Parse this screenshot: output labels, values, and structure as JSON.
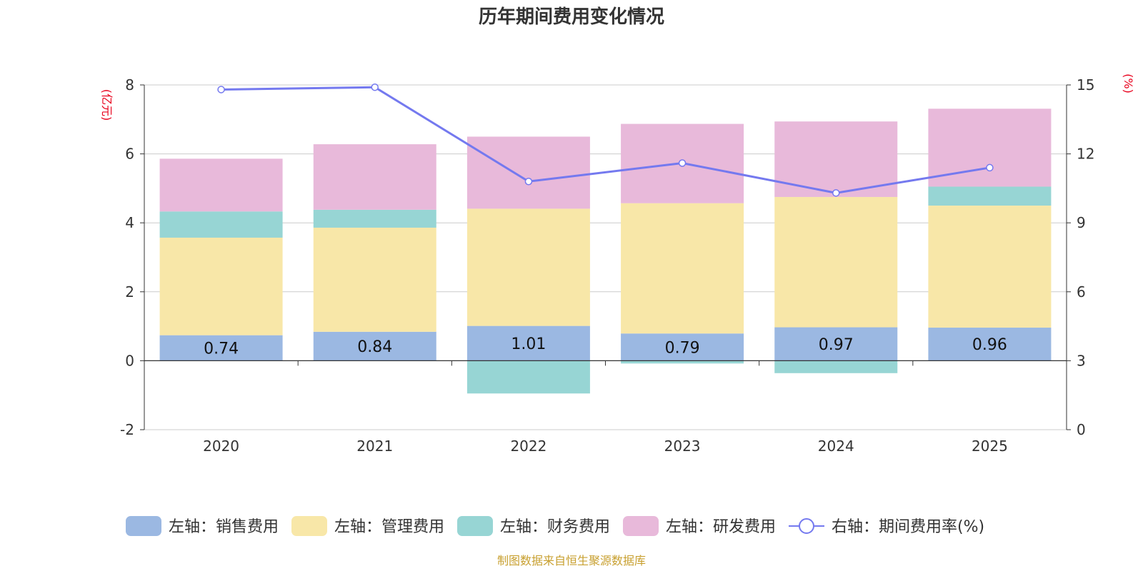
{
  "chart_data": {
    "type": "bar",
    "title": "历年期间费用变化情况",
    "left_unit": "(亿元)",
    "right_unit": "(%)",
    "categories": [
      "2020",
      "2021",
      "2022",
      "2023",
      "2024",
      "2025"
    ],
    "series": [
      {
        "name": "左轴：销售费用",
        "type": "bar",
        "axis": "left",
        "color": "#9bb8e2",
        "values": [
          0.74,
          0.84,
          1.01,
          0.79,
          0.97,
          0.96
        ],
        "labels": [
          "0.74",
          "0.84",
          "1.01",
          "0.79",
          "0.97",
          "0.96"
        ]
      },
      {
        "name": "左轴：管理费用",
        "type": "bar",
        "axis": "left",
        "color": "#f8e7a8",
        "values": [
          2.83,
          3.02,
          3.4,
          3.78,
          3.78,
          3.54
        ]
      },
      {
        "name": "左轴：财务费用",
        "type": "bar",
        "axis": "left",
        "color": "#97d5d4",
        "values": [
          0.76,
          0.52,
          -0.95,
          -0.08,
          -0.36,
          0.55
        ]
      },
      {
        "name": "左轴：研发费用",
        "type": "bar",
        "axis": "left",
        "color": "#e8b9da",
        "values": [
          1.53,
          1.9,
          2.09,
          2.3,
          2.19,
          2.26
        ]
      },
      {
        "name": "右轴：期间费用率(%)",
        "type": "line",
        "axis": "right",
        "color": "#7479ef",
        "values": [
          14.8,
          14.9,
          10.8,
          11.6,
          10.3,
          11.4
        ]
      }
    ],
    "left_axis": {
      "min": -2,
      "max": 8,
      "ticks": [
        -2,
        0,
        2,
        4,
        6,
        8
      ]
    },
    "right_axis": {
      "min": 0,
      "max": 15,
      "ticks": [
        0,
        3,
        6,
        9,
        12,
        15
      ]
    },
    "grid": true,
    "legend_position": "bottom",
    "source": "制图数据来自恒生聚源数据库",
    "colors": {
      "title": "#333333",
      "unit": "#e8001c",
      "source": "#c8a030",
      "axis": "#333333",
      "grid": "#cccccc"
    }
  }
}
